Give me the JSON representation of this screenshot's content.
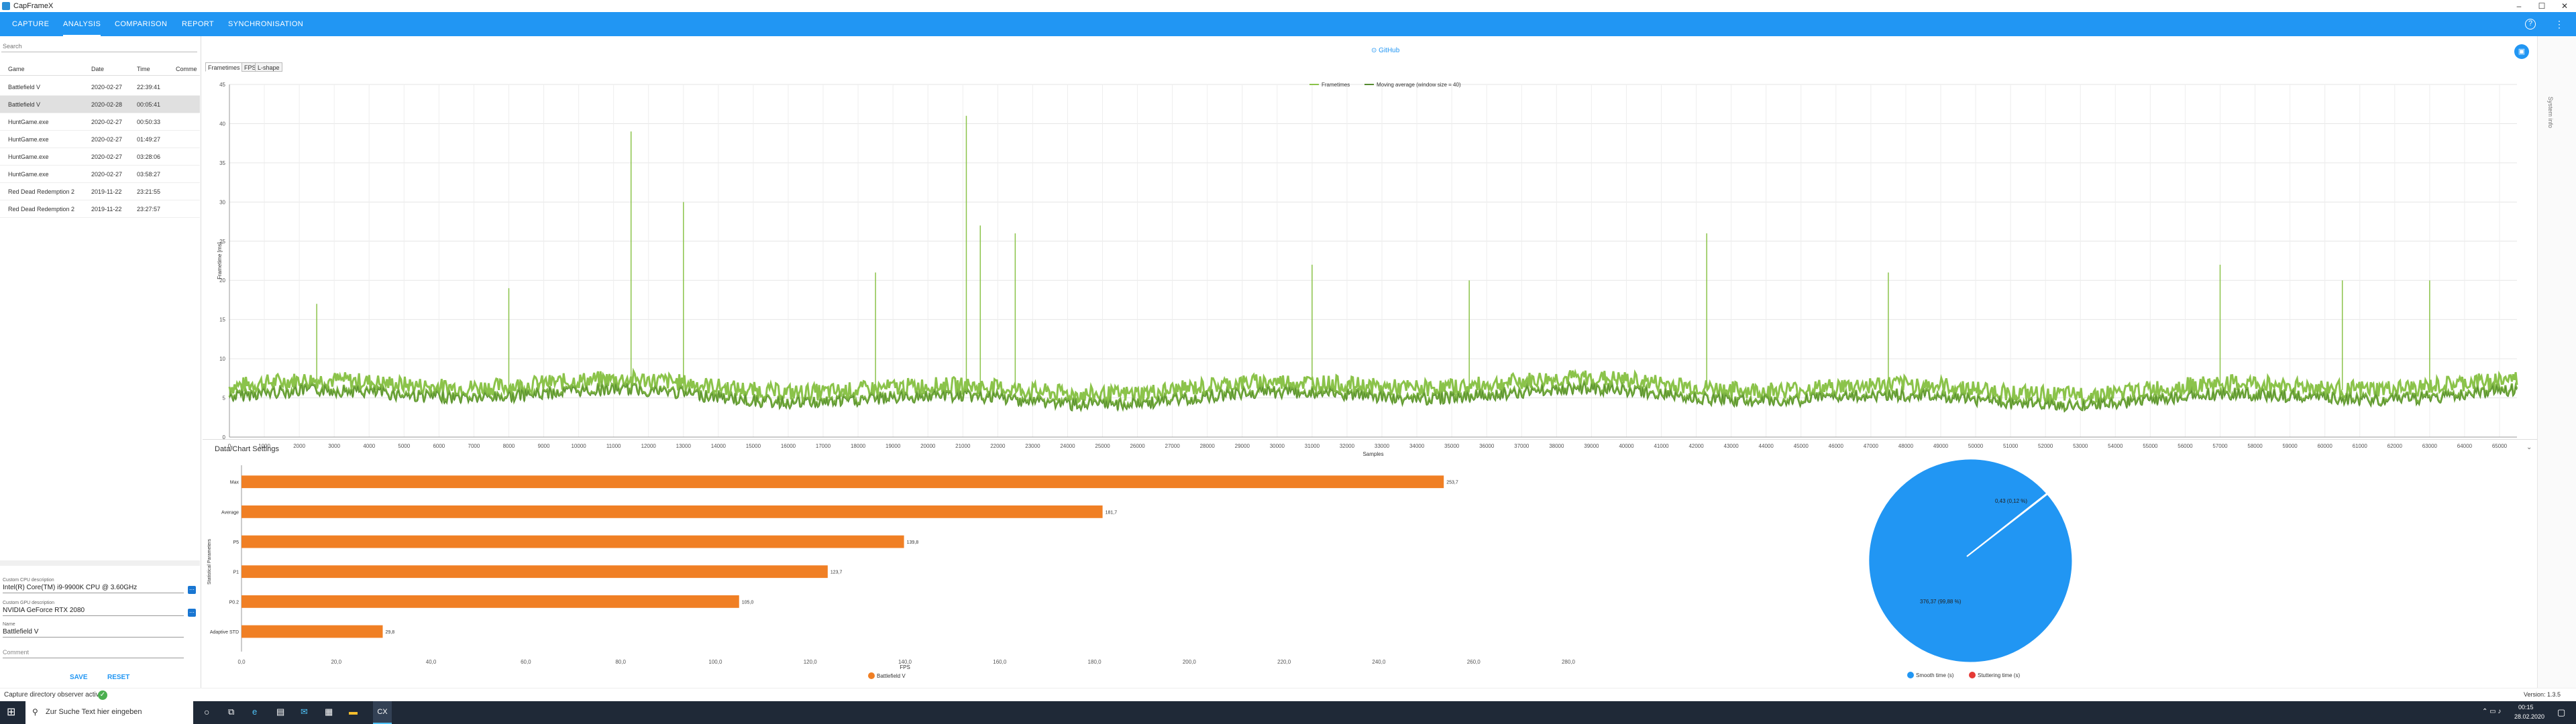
{
  "window": {
    "title": "CapFrameX"
  },
  "nav": {
    "tabs": [
      "CAPTURE",
      "ANALYSIS",
      "COMPARISON",
      "REPORT",
      "SYNCHRONISATION"
    ],
    "active": "ANALYSIS"
  },
  "sidebar": {
    "search_placeholder": "Search",
    "columns": [
      "Game",
      "Date",
      "Time",
      "Comme"
    ],
    "rows": [
      {
        "game": "Battlefield V",
        "date": "2020-02-27",
        "time": "22:39:41"
      },
      {
        "game": "Battlefield V",
        "date": "2020-02-28",
        "time": "00:05:41"
      },
      {
        "game": "HuntGame.exe",
        "date": "2020-02-27",
        "time": "00:50:33"
      },
      {
        "game": "HuntGame.exe",
        "date": "2020-02-27",
        "time": "01:49:27"
      },
      {
        "game": "HuntGame.exe",
        "date": "2020-02-27",
        "time": "03:28:06"
      },
      {
        "game": "HuntGame.exe",
        "date": "2020-02-27",
        "time": "03:58:27"
      },
      {
        "game": "Red Dead Redemption 2",
        "date": "2019-11-22",
        "time": "23:21:55"
      },
      {
        "game": "Red Dead Redemption 2",
        "date": "2019-11-22",
        "time": "23:27:57"
      }
    ],
    "cpu_label": "Custom CPU description",
    "cpu_value": "Intel(R) Core(TM) i9-9900K CPU @ 3.60GHz",
    "gpu_label": "Custom GPU description",
    "gpu_value": "NVIDIA GeForce RTX 2080",
    "name_label": "Name",
    "name_value": "Battlefield V",
    "comment_placeholder": "Comment",
    "save_label": "SAVE",
    "reset_label": "RESET"
  },
  "main": {
    "github_label": "GitHub",
    "subtabs": [
      "Frametimes",
      "FPS",
      "L-shape"
    ],
    "active_subtab": "Frametimes",
    "settings_label": "Data/Chart Settings",
    "right_panel_label": "System info"
  },
  "status": {
    "text": "Capture directory observer active",
    "version": "Version: 1.3.5"
  },
  "taskbar": {
    "search_placeholder": "Zur Suche Text hier eingeben",
    "time": "00:15",
    "date": "28.02.2020"
  },
  "chart_data": [
    {
      "type": "line",
      "title": "",
      "legend": [
        "Frametimes",
        "Moving average (window size = 40)"
      ],
      "legend_position": "top-center",
      "xlabel": "Samples",
      "ylabel": "Frametime [ms]",
      "xlim": [
        0,
        65500
      ],
      "ylim": [
        0,
        45
      ],
      "x_ticks": [
        0,
        1000,
        2000,
        3000,
        4000,
        5000,
        6000,
        7000,
        8000,
        9000,
        10000,
        11000,
        12000,
        13000,
        14000,
        15000,
        16000,
        17000,
        18000,
        19000,
        20000,
        21000,
        22000,
        23000,
        24000,
        25000,
        26000,
        27000,
        28000,
        29000,
        30000,
        31000,
        32000,
        33000,
        34000,
        35000,
        36000,
        37000,
        38000,
        39000,
        40000,
        41000,
        42000,
        43000,
        44000,
        45000,
        46000,
        47000,
        48000,
        49000,
        50000,
        51000,
        52000,
        53000,
        54000,
        55000,
        56000,
        57000,
        58000,
        59000,
        60000,
        61000,
        62000,
        63000,
        64000,
        65000
      ],
      "y_ticks": [
        0,
        5,
        10,
        15,
        20,
        25,
        30,
        35,
        40,
        45
      ],
      "grid": true,
      "series_color": "#8bc34a",
      "baseline_ms": 6,
      "spikes": [
        {
          "x": 11500,
          "y": 39
        },
        {
          "x": 13000,
          "y": 30
        },
        {
          "x": 18500,
          "y": 21
        },
        {
          "x": 21100,
          "y": 41
        },
        {
          "x": 21500,
          "y": 27
        },
        {
          "x": 22500,
          "y": 26
        },
        {
          "x": 31000,
          "y": 22
        },
        {
          "x": 35500,
          "y": 20
        },
        {
          "x": 42300,
          "y": 26
        },
        {
          "x": 47500,
          "y": 21
        },
        {
          "x": 57000,
          "y": 22
        },
        {
          "x": 60500,
          "y": 20
        },
        {
          "x": 63000,
          "y": 20
        },
        {
          "x": 8000,
          "y": 19
        },
        {
          "x": 2500,
          "y": 17
        }
      ]
    },
    {
      "type": "bar",
      "orientation": "horizontal",
      "categories": [
        "Max",
        "Average",
        "P5",
        "P1",
        "P0.2",
        "Adaptive STD"
      ],
      "series": [
        {
          "name": "Battlefield V",
          "values": [
            253.7,
            181.7,
            139.8,
            123.7,
            105.0,
            29.8
          ]
        }
      ],
      "value_labels": [
        "253,7",
        "181,7",
        "139,8",
        "123,7",
        "105,0",
        "29,8"
      ],
      "ylabel": "Statistical Parameters",
      "xlim": [
        0,
        280
      ],
      "x_ticks": [
        "0,0",
        "20,0",
        "40,0",
        "60,0",
        "80,0",
        "100,0",
        "120,0",
        "140,0",
        "160,0",
        "180,0",
        "200,0",
        "220,0",
        "240,0",
        "260,0",
        "280,0"
      ],
      "xlabel": "FPS",
      "color": "#f07f24"
    },
    {
      "type": "pie",
      "labels": [
        "Smooth time (s)",
        "Stuttering time (s)"
      ],
      "slice_labels": [
        "376,37 (99,88 %)",
        "0,43 (0,12 %)"
      ],
      "values": [
        376.37,
        0.43
      ],
      "colors": [
        "#2196f3",
        "#e53935"
      ],
      "legend_position": "bottom"
    }
  ]
}
